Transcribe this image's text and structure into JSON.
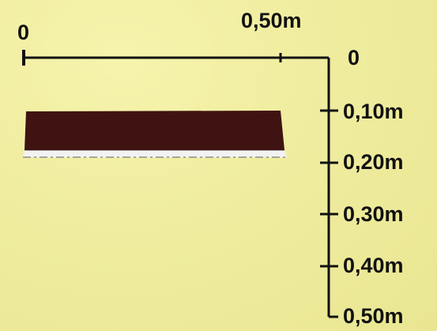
{
  "diagram": {
    "horizontal_scale": {
      "start_label": "0",
      "end_label": "0,50m"
    },
    "vertical_scale": {
      "labels": [
        "0",
        "0,10m",
        "0,20m",
        "0,30m",
        "0,40m",
        "0,50m"
      ]
    },
    "colors": {
      "background": "#f0eda0",
      "scale_line": "#111111",
      "slab_top": "#3f1312",
      "slab_bottom": "#f2f2f2",
      "slab_edge": "#8d8d8d"
    }
  }
}
